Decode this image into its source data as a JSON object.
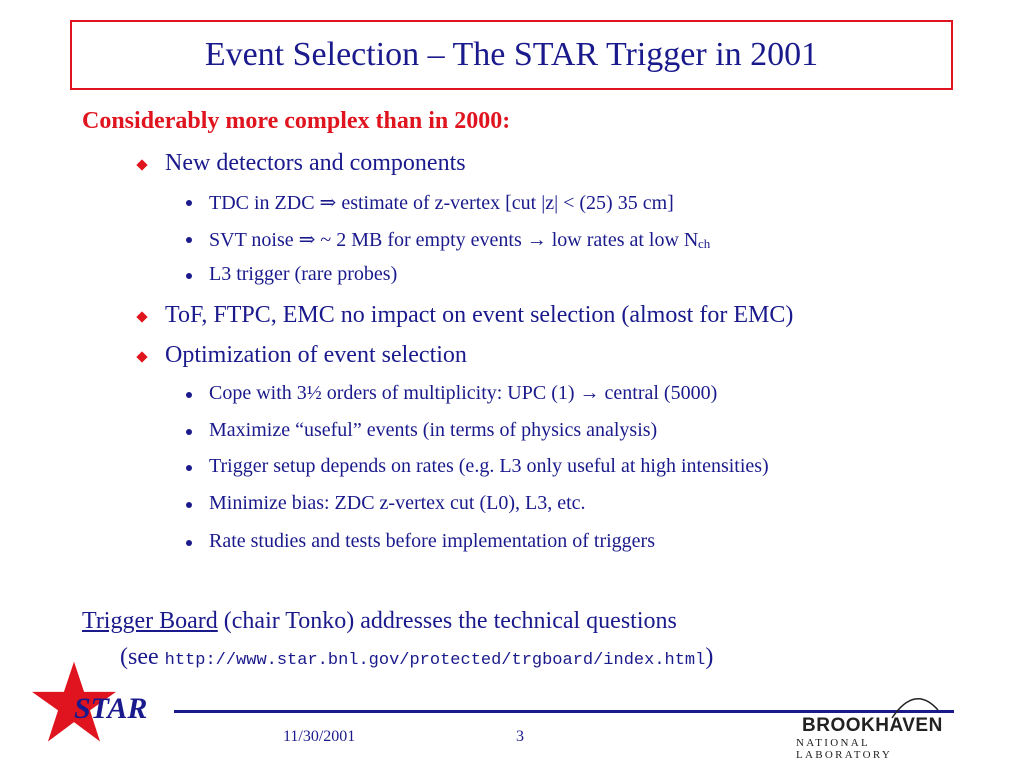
{
  "title": "Event Selection – The STAR Trigger in 2001",
  "heading": "Considerably more complex than in 2000:",
  "items": [
    {
      "level": 1,
      "text": "New detectors and components"
    },
    {
      "level": 2,
      "text": "TDC in ZDC ⇒ estimate of z-vertex [cut |z| < (25) 35 cm]"
    },
    {
      "level": 2,
      "text": "SVT noise ⇒ ~ 2 MB for empty events → low rates at low N",
      "sub": "ch"
    },
    {
      "level": 2,
      "text": "L3 trigger (rare probes)"
    },
    {
      "level": 1,
      "text": "ToF, FTPC, EMC no impact on event selection (almost for EMC)"
    },
    {
      "level": 1,
      "text": "Optimization of event selection"
    },
    {
      "level": 2,
      "text": "Cope with 3½ orders of multiplicity: UPC (1) → central (5000)"
    },
    {
      "level": 2,
      "text": "Maximize “useful” events (in terms of physics analysis)"
    },
    {
      "level": 2,
      "text": "Trigger setup depends on rates (e.g. L3 only useful at high intensities)"
    },
    {
      "level": 2,
      "text": "Minimize bias: ZDC z-vertex cut (L0), L3, etc."
    },
    {
      "level": 2,
      "text": "Rate studies and tests before implementation of triggers"
    }
  ],
  "footer_note": {
    "link_text": "Trigger Board",
    "rest": " (chair Tonko) addresses the technical questions",
    "see_prefix": "(see ",
    "url": "http://www.star.bnl.gov/protected/trgboard/index.html",
    "see_suffix": ")"
  },
  "logo_star": "STAR",
  "date": "11/30/2001",
  "page_number": "3",
  "bnl_name": "BROOKHAVEN",
  "bnl_sub": "NATIONAL LABORATORY",
  "colors": {
    "text": "#1a1a8c",
    "accent": "#e0141e"
  }
}
